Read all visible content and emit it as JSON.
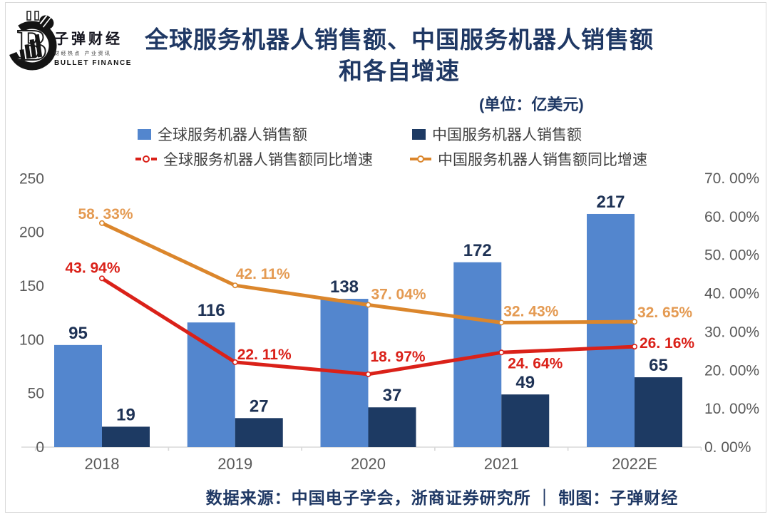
{
  "brand": {
    "name": "子弹财经",
    "tagline": "财经热点 产业资讯",
    "name_en": "BULLET FINANCE"
  },
  "title": {
    "line1": "全球服务机器人销售额、中国服务机器人销售额",
    "line2": "和各自增速",
    "unit_note": "(单位：亿美元)"
  },
  "chart_data": {
    "type": "bar+line combo",
    "categories": [
      "2018",
      "2019",
      "2020",
      "2021",
      "2022E"
    ],
    "series": [
      {
        "name": "全球服务机器人销售额",
        "type": "bar",
        "axis": "left",
        "color": "#5386CE",
        "values": [
          95,
          116,
          138,
          172,
          217
        ]
      },
      {
        "name": "中国服务机器人销售额",
        "type": "bar",
        "axis": "left",
        "color": "#1D3A63",
        "values": [
          19,
          27,
          37,
          49,
          65
        ]
      },
      {
        "name": "全球服务机器人销售额同比增速",
        "type": "line",
        "axis": "right",
        "color": "#DA2119",
        "label_color": "#DA2119",
        "values": [
          43.94,
          22.11,
          18.97,
          24.64,
          26.16
        ],
        "labels": [
          "43. 94%",
          "22. 11%",
          "18. 97%",
          "24. 64%",
          "26. 16%"
        ]
      },
      {
        "name": "中国服务机器人销售额同比增速",
        "type": "line",
        "axis": "right",
        "color": "#DB862C",
        "label_color": "#E49A52",
        "values": [
          58.33,
          42.11,
          37.04,
          32.43,
          32.65
        ],
        "labels": [
          "58. 33%",
          "42. 11%",
          "37. 04%",
          "32. 43%",
          "32. 65%"
        ]
      }
    ],
    "left_axis": {
      "min": 0,
      "max": 250,
      "ticks": [
        250,
        200,
        150,
        100,
        50,
        0
      ]
    },
    "right_axis": {
      "min": 0,
      "max": 70,
      "ticks": [
        {
          "v": 70,
          "label": "70. 00%"
        },
        {
          "v": 60,
          "label": "60. 00%"
        },
        {
          "v": 50,
          "label": "50. 00%"
        },
        {
          "v": 40,
          "label": "40. 00%"
        },
        {
          "v": 30,
          "label": "30. 00%"
        },
        {
          "v": 20,
          "label": "20. 00%"
        },
        {
          "v": 10,
          "label": "10. 00%"
        },
        {
          "v": 0,
          "label": "0. 00%"
        }
      ]
    },
    "grid": false,
    "legend_position": "top"
  },
  "footer": {
    "text": "数据来源：中国电子学会，浙商证券研究所 ｜ 制图：子弹财经"
  }
}
